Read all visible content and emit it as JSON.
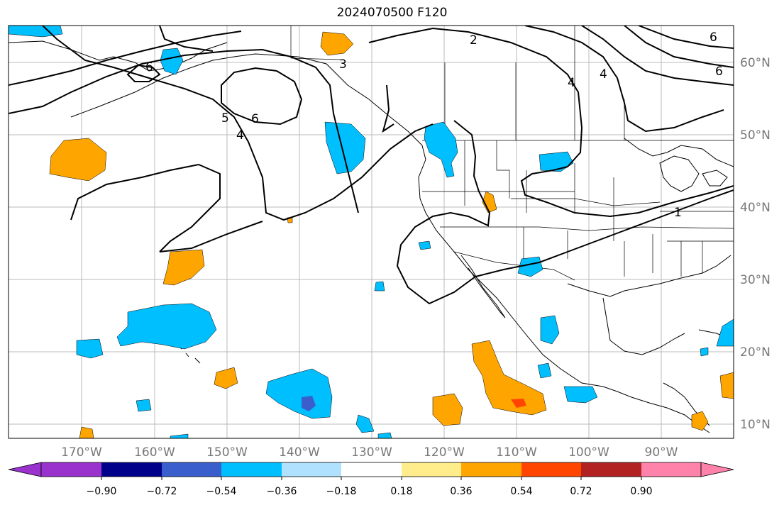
{
  "title": "2024070500 F120",
  "map": {
    "lon_labels": [
      "170°W",
      "160°W",
      "150°W",
      "140°W",
      "130°W",
      "120°W",
      "110°W",
      "100°W",
      "90°W"
    ],
    "lat_labels": [
      "60°N",
      "50°N",
      "40°N",
      "30°N",
      "20°N",
      "10°N"
    ],
    "contour_labels": [
      "2",
      "3",
      "4",
      "5",
      "6",
      "6",
      "4",
      "6",
      "1",
      "4",
      "6"
    ],
    "grid": true
  },
  "colorbar": {
    "ticks": [
      "−0.90",
      "−0.72",
      "−0.54",
      "−0.36",
      "−0.18",
      "0.18",
      "0.36",
      "0.54",
      "0.72",
      "0.90"
    ],
    "colors": [
      "#9a32cd",
      "#00008b",
      "#3a5fcd",
      "#00bfff",
      "#b0e2ff",
      "#ffffff",
      "#ffec8b",
      "#ffa500",
      "#ff4500",
      "#b22222",
      "#ff82ab"
    ]
  },
  "colors": {
    "positive": "#ffa500",
    "negative": "#00bfff",
    "strong_negative": "#3a5fcd",
    "strong_positive": "#ff4500"
  }
}
